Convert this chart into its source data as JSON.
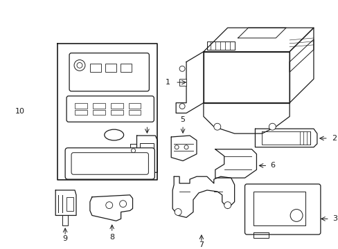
{
  "background_color": "#ffffff",
  "line_color": "#1a1a1a",
  "lw": 0.9,
  "fig_w": 4.89,
  "fig_h": 3.6,
  "dpi": 100
}
